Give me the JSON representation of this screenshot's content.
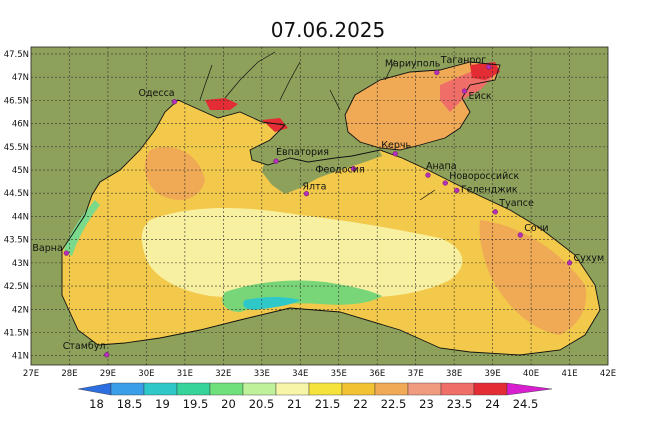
{
  "title": "07.06.2025",
  "map": {
    "lon_ticks": [
      "27E",
      "28E",
      "29E",
      "30E",
      "31E",
      "32E",
      "33E",
      "34E",
      "35E",
      "36E",
      "37E",
      "38E",
      "39E",
      "40E",
      "41E",
      "42E"
    ],
    "lat_ticks": [
      "47.5N",
      "47N",
      "46.5N",
      "46N",
      "45.5N",
      "45N",
      "44.5N",
      "44N",
      "43.5N",
      "43N",
      "42.5N",
      "42N",
      "41.5N",
      "41N"
    ],
    "cities": [
      {
        "name": "Одесса",
        "lon": 30.73,
        "lat": 46.47
      },
      {
        "name": "Варна",
        "lon": 27.92,
        "lat": 43.21
      },
      {
        "name": "Стамбул",
        "lon": 28.97,
        "lat": 41.02
      },
      {
        "name": "Евпатория",
        "lon": 33.37,
        "lat": 45.19
      },
      {
        "name": "Ялта",
        "lon": 34.16,
        "lat": 44.49
      },
      {
        "name": "Феодосия",
        "lon": 35.38,
        "lat": 45.03
      },
      {
        "name": "Керчь",
        "lon": 36.47,
        "lat": 45.35
      },
      {
        "name": "Мариуполь",
        "lon": 37.55,
        "lat": 47.1
      },
      {
        "name": "Таганрог",
        "lon": 38.9,
        "lat": 47.22
      },
      {
        "name": "Ейск",
        "lon": 38.27,
        "lat": 46.7
      },
      {
        "name": "Анапа",
        "lon": 37.32,
        "lat": 44.89
      },
      {
        "name": "Новороссийск",
        "lon": 37.77,
        "lat": 44.72
      },
      {
        "name": "Геленджик",
        "lon": 38.07,
        "lat": 44.56
      },
      {
        "name": "Туапсе",
        "lon": 39.07,
        "lat": 44.1
      },
      {
        "name": "Сочи",
        "lon": 39.72,
        "lat": 43.6
      },
      {
        "name": "Сухум",
        "lon": 41.0,
        "lat": 43.0
      }
    ]
  },
  "colorbar": {
    "labels": [
      "18",
      "18.5",
      "19",
      "19.5",
      "20",
      "20.5",
      "21",
      "21.5",
      "22",
      "22.5",
      "23",
      "23.5",
      "24",
      "24.5"
    ],
    "colors": [
      "#2d6fe0",
      "#3a9ee8",
      "#2fc8c8",
      "#36d39a",
      "#6fe07a",
      "#bff09a",
      "#f7f5a8",
      "#f5e23a",
      "#f2c233",
      "#f0aa55",
      "#f09a80",
      "#ef6f68",
      "#e32c33",
      "#d81fd0"
    ]
  },
  "colors": {
    "land": "#8da15a",
    "warm_sea": "#f2c94a",
    "cool_sea": "#f7f0a0"
  }
}
